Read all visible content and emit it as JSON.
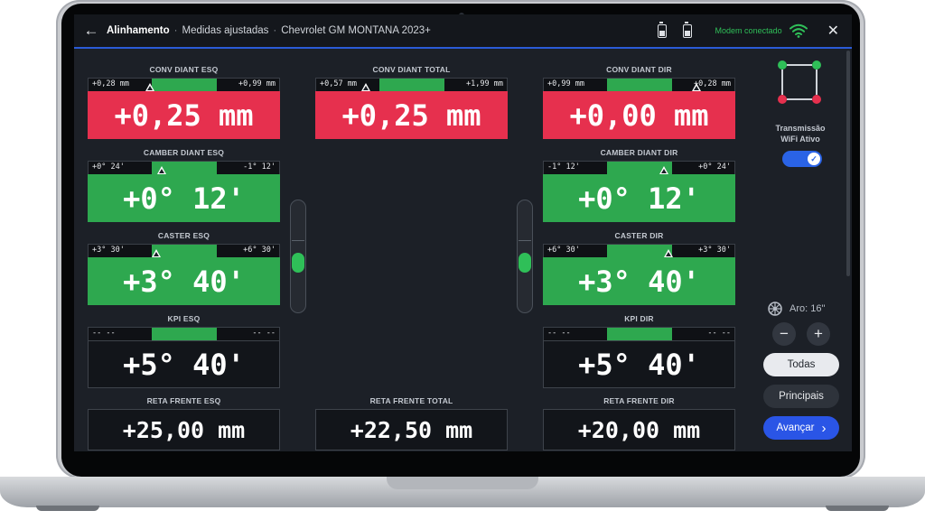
{
  "header": {
    "title": "Alinhamento",
    "crumb1": "Medidas ajustadas",
    "crumb2": "Chevrolet GM MONTANA 2023+",
    "modem": "Modem conectado"
  },
  "icons": [
    "back-icon",
    "battery-icon",
    "wifi-icon",
    "close-icon",
    "wheel-icon"
  ],
  "colors": {
    "accent": "#2a55e6",
    "ok": "#2ea84f",
    "alert": "#e6304e"
  },
  "conv": {
    "left": {
      "label": "CONV DIANT ESQ",
      "min": "+0,28 mm",
      "max": "+0,99 mm",
      "value": "+0,25 mm"
    },
    "total": {
      "label": "CONV DIANT TOTAL",
      "min": "+0,57 mm",
      "max": "+1,99 mm",
      "value": "+0,25 mm"
    },
    "right": {
      "label": "CONV DIANT DIR",
      "min": "+0,99 mm",
      "max": "+0,28 mm",
      "value": "+0,00 mm"
    }
  },
  "camber": {
    "left": {
      "label": "CAMBER DIANT ESQ",
      "min": "+0° 24'",
      "max": "-1° 12'",
      "value": "+0° 12'"
    },
    "right": {
      "label": "CAMBER DIANT DIR",
      "min": "-1° 12'",
      "max": "+0° 24'",
      "value": "+0° 12'"
    }
  },
  "caster": {
    "left": {
      "label": "CASTER ESQ",
      "min": "+3° 30'",
      "max": "+6° 30'",
      "value": "+3° 40'"
    },
    "right": {
      "label": "CASTER DIR",
      "min": "+6° 30'",
      "max": "+3° 30'",
      "value": "+3° 40'"
    }
  },
  "kpi": {
    "left": {
      "label": "KPI ESQ",
      "min": "-- --",
      "max": "-- --",
      "value": "+5° 40'"
    },
    "right": {
      "label": "KPI DIR",
      "min": "-- --",
      "max": "-- --",
      "value": "+5° 40'"
    }
  },
  "reta": {
    "left": {
      "label": "RETA FRENTE ESQ",
      "value": "+25,00 mm"
    },
    "total": {
      "label": "RETA FRENTE TOTAL",
      "value": "+22,50 mm"
    },
    "right": {
      "label": "RETA FRENTE DIR",
      "value": "+20,00 mm"
    }
  },
  "panel": {
    "tx_label_1": "Transmissão",
    "tx_label_2": "WiFi Ativo",
    "tx_on": true,
    "aro": "Aro: 16\"",
    "minus": "−",
    "plus": "+",
    "btn_todas": "Todas",
    "btn_principais": "Principais",
    "btn_avancar": "Avançar",
    "avancar_chevron": "›"
  }
}
